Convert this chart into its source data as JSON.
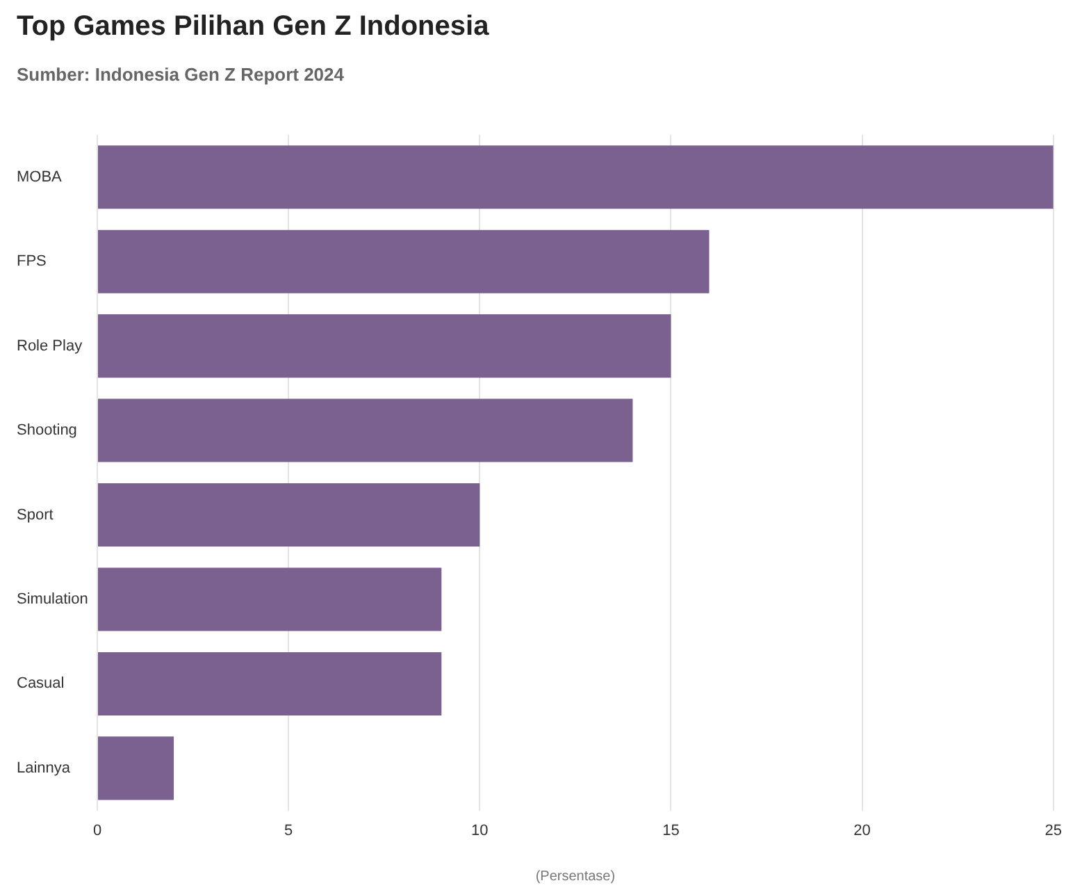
{
  "chart_data": {
    "type": "bar",
    "orientation": "horizontal",
    "title": "Top Games Pilihan Gen Z Indonesia",
    "subtitle": "Sumber: Indonesia Gen Z Report 2024",
    "xlabel": "(Persentase)",
    "categories": [
      "MOBA",
      "FPS",
      "Role Play",
      "Shooting",
      "Sport",
      "Simulation",
      "Casual",
      "Lainnya"
    ],
    "values": [
      25,
      16,
      15,
      14,
      10,
      9,
      9,
      2
    ],
    "color": "#7a6190",
    "xlim": [
      0,
      25
    ],
    "xticks": [
      0,
      5,
      10,
      15,
      20,
      25
    ],
    "grid": "x"
  }
}
